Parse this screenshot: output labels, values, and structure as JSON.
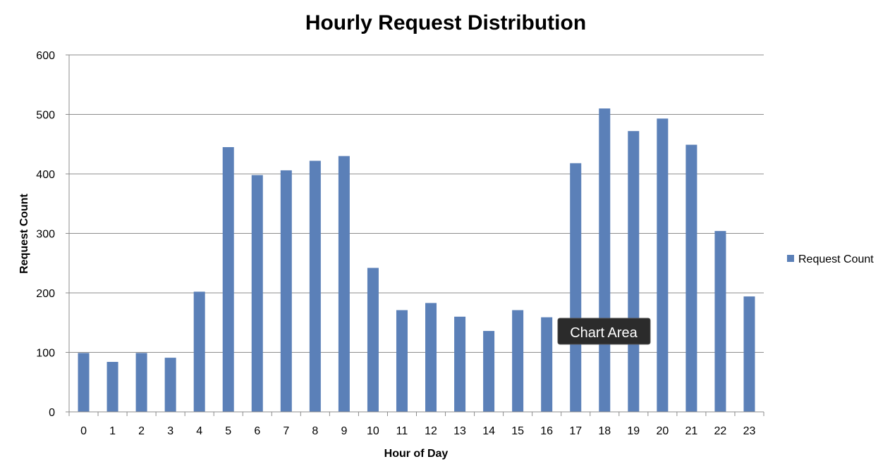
{
  "chart_data": {
    "type": "bar",
    "title": "Hourly Request Distribution",
    "xlabel": "Hour of Day",
    "ylabel": "Request Count",
    "categories": [
      "0",
      "1",
      "2",
      "3",
      "4",
      "5",
      "6",
      "7",
      "8",
      "9",
      "10",
      "11",
      "12",
      "13",
      "14",
      "15",
      "16",
      "17",
      "18",
      "19",
      "20",
      "21",
      "22",
      "23"
    ],
    "series": [
      {
        "name": "Request Count",
        "color": "#5b80b8",
        "values": [
          99,
          84,
          99,
          91,
          202,
          445,
          398,
          406,
          422,
          430,
          242,
          171,
          183,
          160,
          136,
          171,
          159,
          418,
          510,
          472,
          493,
          449,
          304,
          194
        ]
      }
    ],
    "ylim": [
      0,
      600
    ],
    "yticks": [
      0,
      100,
      200,
      300,
      400,
      500,
      600
    ],
    "grid": true,
    "legend_position": "right",
    "gridline_color": "#8c8c8c"
  },
  "tooltip": {
    "label": "Chart Area"
  }
}
